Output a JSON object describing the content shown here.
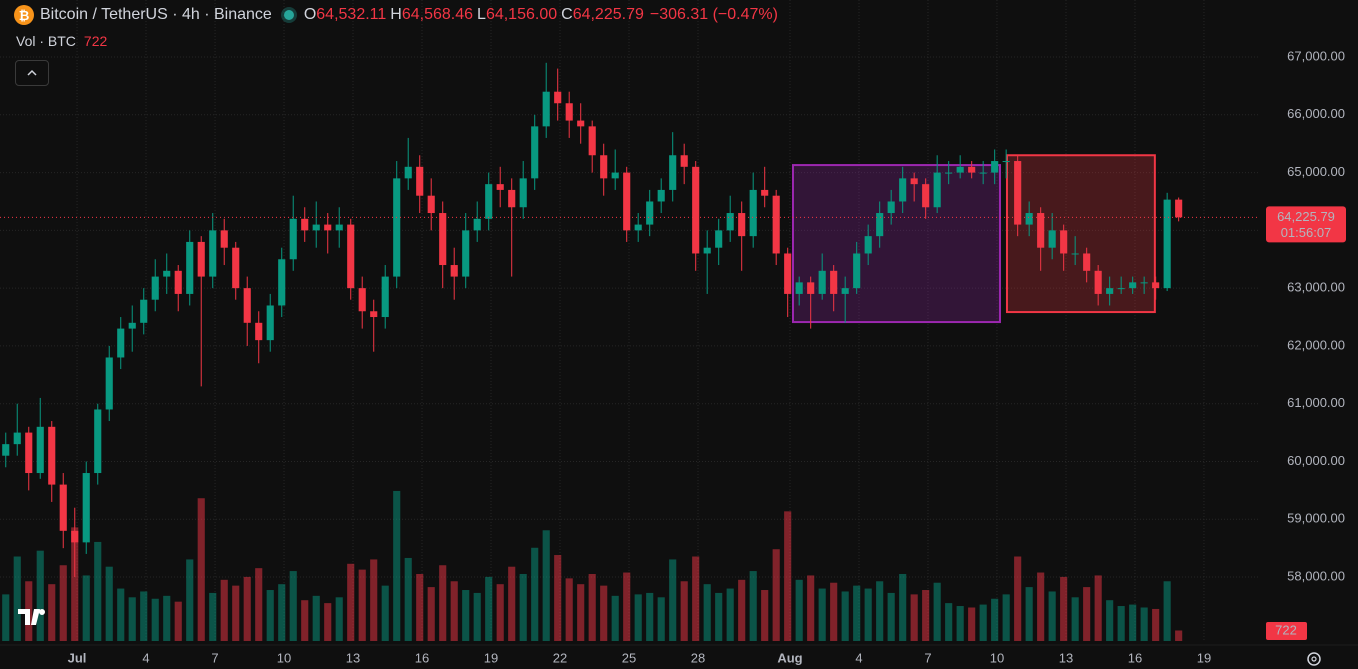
{
  "chart_data": {
    "type": "candlestick",
    "title": "Bitcoin / TetherUS · 4h · Binance",
    "header": {
      "labels": [
        "O",
        "H",
        "L",
        "C"
      ],
      "values": [
        "64,532.11",
        "64,568.46",
        "64,156.00",
        "64,225.79"
      ],
      "change": "−306.31 (−0.47%)"
    },
    "volume_title": "Vol · BTC",
    "volume_label": "722",
    "last_price_label": "64,225.79",
    "countdown": "01:56:07",
    "up_color": "#089981",
    "down_color": "#f23645",
    "grid": true,
    "xlim": [
      0,
      109.4
    ],
    "xticks": [
      {
        "value": 6.7,
        "label": "Jul"
      },
      {
        "value": 12.7,
        "label": "4"
      },
      {
        "value": 18.7,
        "label": "7"
      },
      {
        "value": 24.7,
        "label": "10"
      },
      {
        "value": 30.7,
        "label": "13"
      },
      {
        "value": 36.7,
        "label": "16"
      },
      {
        "value": 42.7,
        "label": "19"
      },
      {
        "value": 48.7,
        "label": "22"
      },
      {
        "value": 54.7,
        "label": "25"
      },
      {
        "value": 60.7,
        "label": "28"
      },
      {
        "value": 68.7,
        "label": "Aug"
      },
      {
        "value": 74.7,
        "label": "4"
      },
      {
        "value": 80.7,
        "label": "7"
      },
      {
        "value": 86.7,
        "label": "10"
      },
      {
        "value": 92.7,
        "label": "13"
      },
      {
        "value": 98.7,
        "label": "16"
      },
      {
        "value": 104.7,
        "label": "19"
      }
    ],
    "ylim": [
      56893,
      67987
    ],
    "yticks": [
      {
        "value": 58000,
        "label": "58,000.00"
      },
      {
        "value": 59000,
        "label": "59,000.00"
      },
      {
        "value": 60000,
        "label": "60,000.00"
      },
      {
        "value": 61000,
        "label": "61,000.00"
      },
      {
        "value": 62000,
        "label": "62,000.00"
      },
      {
        "value": 63000,
        "label": "63,000.00"
      },
      {
        "value": 64000,
        "label": "64,000.00"
      },
      {
        "value": 65000,
        "label": "65,000.00"
      },
      {
        "value": 66000,
        "label": "66,000.00"
      },
      {
        "value": 67000,
        "label": "67,000.00"
      }
    ],
    "volume_lim": [
      0,
      22000
    ],
    "ohlc": [
      [
        60100,
        60500,
        59900,
        60300
      ],
      [
        60300,
        61000,
        60100,
        60500
      ],
      [
        60500,
        60600,
        59500,
        59800
      ],
      [
        59800,
        61100,
        59700,
        60600
      ],
      [
        60600,
        60700,
        59300,
        59600
      ],
      [
        59600,
        59800,
        58500,
        58800
      ],
      [
        58800,
        59200,
        58000,
        58600
      ],
      [
        58600,
        60000,
        58400,
        59800
      ],
      [
        59800,
        61000,
        59600,
        60900
      ],
      [
        60900,
        62000,
        60700,
        61800
      ],
      [
        61800,
        62500,
        61600,
        62300
      ],
      [
        62300,
        62700,
        61900,
        62400
      ],
      [
        62400,
        63000,
        62200,
        62800
      ],
      [
        62800,
        63500,
        62600,
        63200
      ],
      [
        63200,
        63600,
        62900,
        63300
      ],
      [
        63300,
        63400,
        62600,
        62900
      ],
      [
        62900,
        64000,
        62700,
        63800
      ],
      [
        63800,
        63900,
        61300,
        63200
      ],
      [
        63200,
        64300,
        63000,
        64000
      ],
      [
        64000,
        64200,
        63400,
        63700
      ],
      [
        63700,
        63800,
        62800,
        63000
      ],
      [
        63000,
        63200,
        62000,
        62400
      ],
      [
        62400,
        62600,
        61700,
        62100
      ],
      [
        62100,
        62900,
        61900,
        62700
      ],
      [
        62700,
        63700,
        62500,
        63500
      ],
      [
        63500,
        64600,
        63300,
        64200
      ],
      [
        64200,
        64400,
        63800,
        64000
      ],
      [
        64000,
        64500,
        63700,
        64100
      ],
      [
        64100,
        64300,
        63600,
        64000
      ],
      [
        64000,
        64400,
        63700,
        64100
      ],
      [
        64100,
        64200,
        62800,
        63000
      ],
      [
        63000,
        63200,
        62300,
        62600
      ],
      [
        62600,
        62800,
        61900,
        62500
      ],
      [
        62500,
        63400,
        62300,
        63200
      ],
      [
        63200,
        65200,
        63000,
        64900
      ],
      [
        64900,
        65600,
        64700,
        65100
      ],
      [
        65100,
        65300,
        64300,
        64600
      ],
      [
        64600,
        64900,
        64000,
        64300
      ],
      [
        64300,
        64500,
        63000,
        63400
      ],
      [
        63400,
        63700,
        62800,
        63200
      ],
      [
        63200,
        64300,
        63000,
        64000
      ],
      [
        64000,
        64500,
        63800,
        64200
      ],
      [
        64200,
        65000,
        64000,
        64800
      ],
      [
        64800,
        65100,
        64400,
        64700
      ],
      [
        64700,
        64900,
        63200,
        64400
      ],
      [
        64400,
        65200,
        64200,
        64900
      ],
      [
        64900,
        66000,
        64700,
        65800
      ],
      [
        65800,
        66900,
        65600,
        66400
      ],
      [
        66400,
        66800,
        65900,
        66200
      ],
      [
        66200,
        66400,
        65600,
        65900
      ],
      [
        65900,
        66200,
        65500,
        65800
      ],
      [
        65800,
        65900,
        65000,
        65300
      ],
      [
        65300,
        65500,
        64600,
        64900
      ],
      [
        64900,
        65400,
        64700,
        65000
      ],
      [
        65000,
        65100,
        63800,
        64000
      ],
      [
        64000,
        64300,
        63800,
        64100
      ],
      [
        64100,
        64700,
        63900,
        64500
      ],
      [
        64500,
        64900,
        64300,
        64700
      ],
      [
        64700,
        65700,
        64500,
        65300
      ],
      [
        65300,
        65500,
        64800,
        65100
      ],
      [
        65100,
        65200,
        63300,
        63600
      ],
      [
        63600,
        64000,
        62900,
        63700
      ],
      [
        63700,
        64200,
        63400,
        64000
      ],
      [
        64000,
        64600,
        63800,
        64300
      ],
      [
        64300,
        64500,
        63300,
        63900
      ],
      [
        63900,
        65000,
        63700,
        64700
      ],
      [
        64700,
        65100,
        64400,
        64600
      ],
      [
        64600,
        64700,
        63400,
        63600
      ],
      [
        63600,
        63700,
        62500,
        62900
      ],
      [
        62900,
        63200,
        62700,
        63100
      ],
      [
        63100,
        63200,
        62300,
        62900
      ],
      [
        62900,
        63600,
        62800,
        63300
      ],
      [
        63300,
        63400,
        62600,
        62900
      ],
      [
        62900,
        63200,
        62400,
        63000
      ],
      [
        63000,
        63800,
        62900,
        63600
      ],
      [
        63600,
        64100,
        63400,
        63900
      ],
      [
        63900,
        64500,
        63700,
        64300
      ],
      [
        64300,
        64700,
        64100,
        64500
      ],
      [
        64500,
        65100,
        64300,
        64900
      ],
      [
        64900,
        65000,
        64500,
        64800
      ],
      [
        64800,
        64900,
        64200,
        64400
      ],
      [
        64400,
        65300,
        64300,
        65000
      ],
      [
        65000,
        65200,
        64800,
        65000
      ],
      [
        65000,
        65300,
        64900,
        65100
      ],
      [
        65100,
        65200,
        64900,
        65000
      ],
      [
        65000,
        65200,
        64800,
        65000
      ],
      [
        65000,
        65400,
        64800,
        65200
      ],
      [
        65200,
        65400,
        64900,
        65200
      ],
      [
        65200,
        65300,
        63900,
        64100
      ],
      [
        64100,
        64500,
        63900,
        64300
      ],
      [
        64300,
        64400,
        63300,
        63700
      ],
      [
        63700,
        64300,
        63500,
        64000
      ],
      [
        64000,
        64100,
        63300,
        63600
      ],
      [
        63600,
        63900,
        63400,
        63600
      ],
      [
        63600,
        63700,
        63100,
        63300
      ],
      [
        63300,
        63400,
        62700,
        62900
      ],
      [
        62900,
        63200,
        62700,
        63000
      ],
      [
        63000,
        63200,
        62900,
        63000
      ],
      [
        63000,
        63200,
        62900,
        63100
      ],
      [
        63100,
        63200,
        62900,
        63100
      ],
      [
        63100,
        63200,
        62800,
        63000
      ],
      [
        63000,
        64650,
        62950,
        64532.11
      ],
      [
        64532.11,
        64568.46,
        64156,
        64225.79
      ]
    ],
    "volumes": [
      3200,
      5800,
      4100,
      6200,
      3900,
      5200,
      7800,
      4500,
      6800,
      5100,
      3600,
      3000,
      3400,
      2900,
      3100,
      2700,
      5600,
      9800,
      3300,
      4200,
      3800,
      4400,
      5000,
      3500,
      3900,
      4800,
      2800,
      3100,
      2600,
      3000,
      5300,
      4900,
      5600,
      3800,
      10300,
      5700,
      4600,
      3700,
      5200,
      4100,
      3500,
      3300,
      4400,
      3900,
      5100,
      4600,
      6400,
      7600,
      5900,
      4300,
      3900,
      4600,
      3800,
      3100,
      4700,
      3200,
      3300,
      3000,
      5600,
      4100,
      5800,
      3900,
      3300,
      3600,
      4200,
      4800,
      3500,
      6300,
      8900,
      4200,
      4500,
      3600,
      4000,
      3400,
      3800,
      3600,
      4100,
      3300,
      4600,
      3200,
      3500,
      4000,
      2600,
      2400,
      2300,
      2500,
      2900,
      3200,
      5800,
      3700,
      4700,
      3400,
      4400,
      3000,
      3700,
      4500,
      2800,
      2400,
      2500,
      2300,
      2200,
      4100,
      722
    ],
    "shapes": [
      {
        "x": [
          68.96,
          86.96
        ],
        "y": [
          65130,
          62413
        ],
        "color": "#9c27b0"
      },
      {
        "x": [
          87.57,
          100.43
        ],
        "y": [
          65300,
          62586
        ],
        "color": "#f23645"
      }
    ]
  }
}
